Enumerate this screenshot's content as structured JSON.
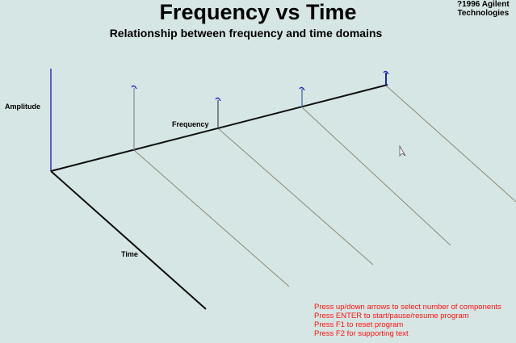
{
  "header": {
    "title": "Frequency vs Time",
    "subtitle": "Relationship between frequency and time domains",
    "copyright_line1": "?1996 Agilent",
    "copyright_line2": "Technologies"
  },
  "axes": {
    "amplitude": "Amplitude",
    "frequency": "Frequency",
    "time": "Time"
  },
  "help": [
    "Press up/down arrows to select number of components",
    "Press ENTER to start/pause/resume program",
    "Press F1 to reset program",
    "Press F2 for supporting text"
  ],
  "colors": {
    "background": "#d6e6e4",
    "help_text": "#ff1010",
    "amplitude_axis": "#3030c0",
    "spike": "#2020c0"
  }
}
